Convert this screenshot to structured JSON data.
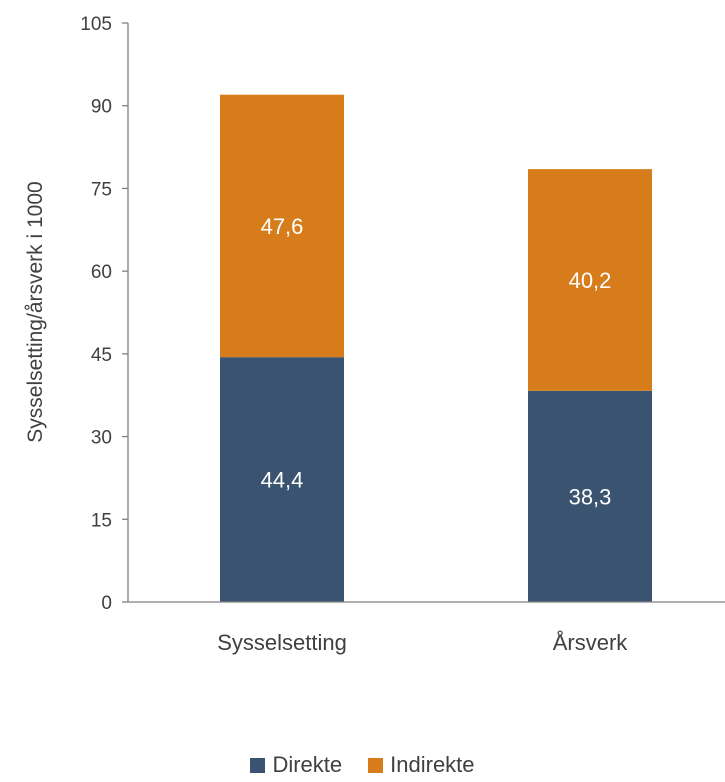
{
  "chart_data": {
    "type": "bar",
    "stacked": true,
    "categories": [
      "Sysselsetting",
      "Årsverk"
    ],
    "series": [
      {
        "name": "Direkte",
        "values": [
          44.4,
          38.3
        ],
        "labels": [
          "44,4",
          "38,3"
        ],
        "color": "#3a5370"
      },
      {
        "name": "Indirekte",
        "values": [
          47.6,
          40.2
        ],
        "labels": [
          "47,6",
          "40,2"
        ],
        "color": "#d67c1a"
      }
    ],
    "ylabel": "Sysselsetting/årsverk i 1000",
    "ylim": [
      0,
      105
    ],
    "yticks": [
      0,
      15,
      30,
      45,
      60,
      75,
      90,
      105
    ],
    "grid": false,
    "legend": "bottom"
  }
}
